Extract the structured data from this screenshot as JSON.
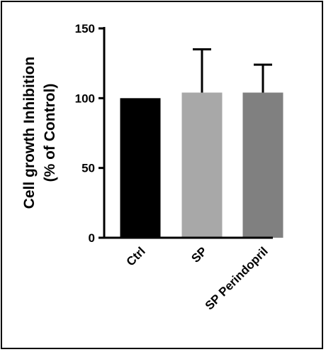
{
  "chart_data": {
    "type": "bar",
    "title": "",
    "xlabel": "",
    "ylabel_line1": "Cell growth Inhibition",
    "ylabel_line2": "(%  of Control)",
    "categories": [
      "Ctrl",
      "SP",
      "SP Perindopril"
    ],
    "values": [
      100,
      104,
      104
    ],
    "error_upper": [
      0,
      31,
      20
    ],
    "colors": [
      "#000000",
      "#a8a8a8",
      "#808080"
    ],
    "ylim": [
      0,
      150
    ],
    "yticks": [
      0,
      50,
      100,
      150
    ],
    "ytick_labels": [
      "0",
      "50",
      "100",
      "150"
    ],
    "grid": false,
    "legend": "none"
  }
}
